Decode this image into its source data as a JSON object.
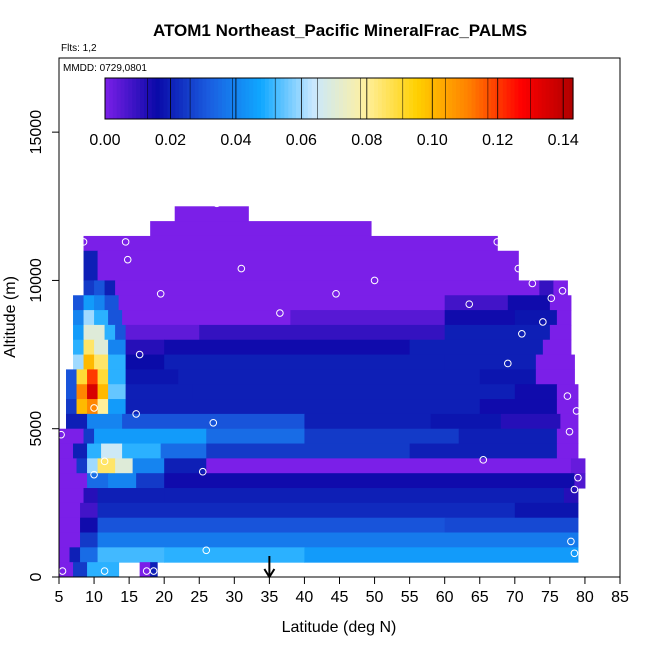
{
  "chart_data": {
    "type": "heatmap",
    "title": "ATOM1 Northeast_Pacific MineralFrac_PALMS",
    "flights_note": "Flts: 1,2",
    "date_note": "MMDD: 0729,0801",
    "xlabel": "Latitude (deg N)",
    "ylabel": "Altitude (m)",
    "xlim": [
      5,
      85
    ],
    "ylim": [
      0,
      17500
    ],
    "x_ticks": [
      5,
      10,
      15,
      20,
      25,
      30,
      35,
      40,
      45,
      50,
      55,
      60,
      65,
      70,
      75,
      80,
      85
    ],
    "y_ticks": [
      0,
      5000,
      10000,
      15000
    ],
    "colorbar": {
      "min": 0.0,
      "max": 0.143,
      "ticks": [
        "0.00",
        "0.02",
        "0.04",
        "0.06",
        "0.08",
        "0.10",
        "0.12",
        "0.14"
      ],
      "tick_values": [
        0,
        0.02,
        0.04,
        0.06,
        0.08,
        0.1,
        0.12,
        0.14
      ],
      "colors": [
        "#7b1fe8",
        "#0a0aa8",
        "#1a5de0",
        "#10a8ff",
        "#c8e8ff",
        "#fff0a0",
        "#ffd000",
        "#ff8000",
        "#ff0000",
        "#b00000"
      ]
    },
    "rows": [
      {
        "y": [
          12000,
          12500
        ],
        "spans": [
          [
            21.5,
            32.0,
            0.0
          ]
        ]
      },
      {
        "y": [
          11500,
          12000
        ],
        "spans": [
          [
            18.0,
            49.5,
            0.0
          ]
        ]
      },
      {
        "y": [
          11000,
          11500
        ],
        "spans": [
          [
            8.5,
            67.5,
            0.0
          ]
        ]
      },
      {
        "y": [
          10000,
          11000
        ],
        "spans": [
          [
            8.5,
            10.5,
            0.02
          ],
          [
            10.5,
            70.5,
            0.0
          ]
        ]
      },
      {
        "y": [
          9500,
          10000
        ],
        "spans": [
          [
            8.5,
            10.0,
            0.025
          ],
          [
            10.0,
            11.5,
            0.03
          ],
          [
            11.5,
            13.0,
            0.02
          ],
          [
            13.0,
            73.5,
            0.0
          ],
          [
            73.5,
            75.5,
            0.01
          ],
          [
            75.5,
            77.5,
            0.0
          ]
        ]
      },
      {
        "y": [
          9000,
          9500
        ],
        "spans": [
          [
            7.0,
            8.5,
            0.03
          ],
          [
            8.5,
            10.0,
            0.045
          ],
          [
            10.0,
            11.5,
            0.04
          ],
          [
            11.5,
            13.5,
            0.03
          ],
          [
            13.5,
            60.0,
            0.0
          ],
          [
            60.0,
            69.0,
            0.008
          ],
          [
            69.0,
            75.0,
            0.015
          ],
          [
            75.0,
            78.0,
            0.0
          ]
        ]
      },
      {
        "y": [
          8500,
          9000
        ],
        "spans": [
          [
            7.0,
            8.5,
            0.04
          ],
          [
            8.5,
            10.0,
            0.06
          ],
          [
            10.0,
            12.0,
            0.05
          ],
          [
            12.0,
            14.0,
            0.03
          ],
          [
            14.0,
            38.0,
            0.0
          ],
          [
            38.0,
            60.0,
            0.005
          ],
          [
            60.0,
            70.0,
            0.015
          ],
          [
            70.0,
            76.0,
            0.018
          ],
          [
            76.0,
            78.0,
            0.0
          ]
        ]
      },
      {
        "y": [
          8000,
          8500
        ],
        "spans": [
          [
            7.0,
            8.5,
            0.045
          ],
          [
            8.5,
            11.5,
            0.07
          ],
          [
            11.5,
            13.0,
            0.05
          ],
          [
            13.0,
            14.5,
            0.03
          ],
          [
            14.5,
            25.0,
            0.004
          ],
          [
            25.0,
            60.0,
            0.01
          ],
          [
            60.0,
            75.0,
            0.02
          ],
          [
            75.0,
            78.0,
            0.0
          ]
        ]
      },
      {
        "y": [
          7500,
          8000
        ],
        "spans": [
          [
            7.0,
            8.5,
            0.05
          ],
          [
            8.5,
            10.0,
            0.085
          ],
          [
            10.0,
            12.0,
            0.07
          ],
          [
            12.0,
            14.5,
            0.04
          ],
          [
            14.5,
            20.0,
            0.012
          ],
          [
            20.0,
            55.0,
            0.015
          ],
          [
            55.0,
            74.0,
            0.02
          ],
          [
            74.0,
            78.0,
            0.0
          ]
        ]
      },
      {
        "y": [
          7000,
          7500
        ],
        "spans": [
          [
            7.0,
            8.5,
            0.06
          ],
          [
            8.5,
            10.0,
            0.1
          ],
          [
            10.0,
            12.0,
            0.085
          ],
          [
            12.0,
            14.5,
            0.05
          ],
          [
            14.5,
            20.0,
            0.016
          ],
          [
            20.0,
            60.0,
            0.02
          ],
          [
            60.0,
            73.0,
            0.02
          ],
          [
            73.0,
            78.5,
            0.0
          ]
        ]
      },
      {
        "y": [
          6500,
          7000
        ],
        "spans": [
          [
            6.0,
            7.5,
            0.03
          ],
          [
            7.5,
            9.0,
            0.09
          ],
          [
            9.0,
            10.5,
            0.12
          ],
          [
            10.5,
            12.0,
            0.09
          ],
          [
            12.0,
            14.5,
            0.05
          ],
          [
            14.5,
            22.0,
            0.018
          ],
          [
            22.0,
            65.0,
            0.02
          ],
          [
            65.0,
            73.0,
            0.018
          ],
          [
            73.0,
            78.5,
            0.0
          ]
        ]
      },
      {
        "y": [
          6000,
          6500
        ],
        "spans": [
          [
            6.0,
            7.5,
            0.03
          ],
          [
            7.5,
            9.0,
            0.11
          ],
          [
            9.0,
            10.5,
            0.135
          ],
          [
            10.5,
            12.0,
            0.1
          ],
          [
            12.0,
            14.5,
            0.055
          ],
          [
            14.5,
            24.0,
            0.02
          ],
          [
            24.0,
            70.0,
            0.02
          ],
          [
            70.0,
            76.0,
            0.015
          ],
          [
            76.0,
            79.0,
            0.0
          ]
        ]
      },
      {
        "y": [
          5500,
          6000
        ],
        "spans": [
          [
            6.0,
            7.5,
            0.025
          ],
          [
            7.5,
            9.0,
            0.1
          ],
          [
            9.0,
            10.5,
            0.11
          ],
          [
            10.5,
            12.0,
            0.08
          ],
          [
            12.0,
            14.5,
            0.045
          ],
          [
            14.5,
            26.0,
            0.02
          ],
          [
            26.0,
            65.0,
            0.02
          ],
          [
            65.0,
            76.0,
            0.015
          ],
          [
            76.0,
            79.0,
            0.0
          ]
        ]
      },
      {
        "y": [
          5000,
          5500
        ],
        "spans": [
          [
            6.0,
            9.0,
            0.02
          ],
          [
            9.0,
            14.0,
            0.04
          ],
          [
            14.0,
            40.0,
            0.03
          ],
          [
            40.0,
            58.0,
            0.02
          ],
          [
            58.0,
            68.0,
            0.018
          ],
          [
            68.0,
            76.5,
            0.012
          ],
          [
            76.5,
            79.0,
            0.0
          ]
        ]
      },
      {
        "y": [
          4500,
          5000
        ],
        "spans": [
          [
            5.0,
            8.5,
            0.0
          ],
          [
            8.5,
            10.0,
            0.025
          ],
          [
            10.0,
            26.0,
            0.045
          ],
          [
            26.0,
            40.0,
            0.035
          ],
          [
            40.0,
            62.0,
            0.025
          ],
          [
            62.0,
            76.0,
            0.02
          ],
          [
            76.0,
            79.0,
            0.0
          ]
        ]
      },
      {
        "y": [
          4000,
          4500
        ],
        "spans": [
          [
            5.0,
            7.0,
            0.0
          ],
          [
            7.0,
            9.0,
            0.02
          ],
          [
            9.0,
            11.0,
            0.05
          ],
          [
            11.0,
            14.0,
            0.065
          ],
          [
            14.0,
            19.5,
            0.05
          ],
          [
            19.5,
            26.0,
            0.035
          ],
          [
            26.0,
            55.0,
            0.025
          ],
          [
            55.0,
            76.0,
            0.02
          ],
          [
            76.0,
            79.0,
            0.0
          ]
        ]
      },
      {
        "y": [
          3500,
          4000
        ],
        "spans": [
          [
            5.0,
            7.5,
            0.0
          ],
          [
            7.5,
            9.0,
            0.025
          ],
          [
            9.0,
            10.5,
            0.06
          ],
          [
            10.5,
            13.0,
            0.085
          ],
          [
            13.0,
            15.5,
            0.07
          ],
          [
            15.5,
            20.0,
            0.04
          ],
          [
            20.0,
            26.0,
            0.02
          ],
          [
            26.0,
            78.0,
            0.0
          ],
          [
            78.0,
            80.0,
            0.003
          ]
        ]
      },
      {
        "y": [
          3000,
          3500
        ],
        "spans": [
          [
            5.0,
            9.0,
            0.0
          ],
          [
            9.0,
            12.0,
            0.035
          ],
          [
            12.0,
            16.0,
            0.04
          ],
          [
            16.0,
            20.0,
            0.025
          ],
          [
            20.0,
            78.5,
            0.015
          ],
          [
            78.5,
            80.0,
            0.006
          ]
        ]
      },
      {
        "y": [
          2500,
          3000
        ],
        "spans": [
          [
            5.0,
            8.5,
            0.0
          ],
          [
            8.5,
            10.5,
            0.012
          ],
          [
            10.5,
            20.0,
            0.02
          ],
          [
            20.0,
            77.0,
            0.02
          ],
          [
            77.0,
            79.0,
            0.012
          ]
        ]
      },
      {
        "y": [
          2000,
          2500
        ],
        "spans": [
          [
            5.0,
            8.0,
            0.0
          ],
          [
            8.0,
            10.5,
            0.008
          ],
          [
            10.5,
            70.0,
            0.022
          ],
          [
            70.0,
            79.0,
            0.018
          ]
        ]
      },
      {
        "y": [
          1500,
          2000
        ],
        "spans": [
          [
            5.0,
            8.0,
            0.0
          ],
          [
            8.0,
            10.5,
            0.015
          ],
          [
            10.5,
            60.0,
            0.03
          ],
          [
            60.0,
            79.0,
            0.028
          ]
        ]
      },
      {
        "y": [
          1000,
          1500
        ],
        "spans": [
          [
            5.0,
            8.0,
            0.0
          ],
          [
            8.0,
            10.5,
            0.025
          ],
          [
            10.5,
            79.0,
            0.038
          ]
        ]
      },
      {
        "y": [
          500,
          1000
        ],
        "spans": [
          [
            5.0,
            6.5,
            0.0
          ],
          [
            6.5,
            8.0,
            0.02
          ],
          [
            8.0,
            10.5,
            0.035
          ],
          [
            10.5,
            20.0,
            0.052
          ],
          [
            20.0,
            40.0,
            0.05
          ],
          [
            40.0,
            79.0,
            0.045
          ]
        ]
      },
      {
        "y": [
          0,
          500
        ],
        "spans": [
          [
            5.0,
            7.0,
            0.0
          ],
          [
            7.0,
            9.0,
            0.025
          ],
          [
            9.0,
            13.5,
            0.05
          ],
          [
            16.5,
            18.0,
            0.0
          ],
          [
            18.0,
            19.0,
            0.02
          ]
        ]
      }
    ],
    "sample_points": [
      [
        27.5,
        12600
      ],
      [
        8.5,
        11300
      ],
      [
        14.5,
        11300
      ],
      [
        67.5,
        11300
      ],
      [
        14.8,
        10700
      ],
      [
        31.0,
        10400
      ],
      [
        70.5,
        10400
      ],
      [
        19.5,
        9550
      ],
      [
        44.5,
        9550
      ],
      [
        50.0,
        10000
      ],
      [
        72.5,
        9900
      ],
      [
        76.8,
        9650
      ],
      [
        75.2,
        9400
      ],
      [
        63.5,
        9200
      ],
      [
        36.5,
        8900
      ],
      [
        74.0,
        8600
      ],
      [
        71.0,
        8200
      ],
      [
        16.5,
        7500
      ],
      [
        69.0,
        7200
      ],
      [
        77.5,
        6100
      ],
      [
        10.0,
        5700
      ],
      [
        16.0,
        5500
      ],
      [
        78.8,
        5600
      ],
      [
        27.0,
        5200
      ],
      [
        5.3,
        4800
      ],
      [
        77.8,
        4900
      ],
      [
        11.5,
        3900
      ],
      [
        65.5,
        3950
      ],
      [
        10.0,
        3450
      ],
      [
        25.5,
        3550
      ],
      [
        79.0,
        3350
      ],
      [
        78.5,
        2950
      ],
      [
        26.0,
        900
      ],
      [
        78.0,
        1200
      ],
      [
        78.5,
        800
      ],
      [
        5.5,
        200
      ],
      [
        11.5,
        200
      ],
      [
        17.5,
        200
      ],
      [
        18.5,
        200
      ]
    ],
    "marker_x": 35
  }
}
